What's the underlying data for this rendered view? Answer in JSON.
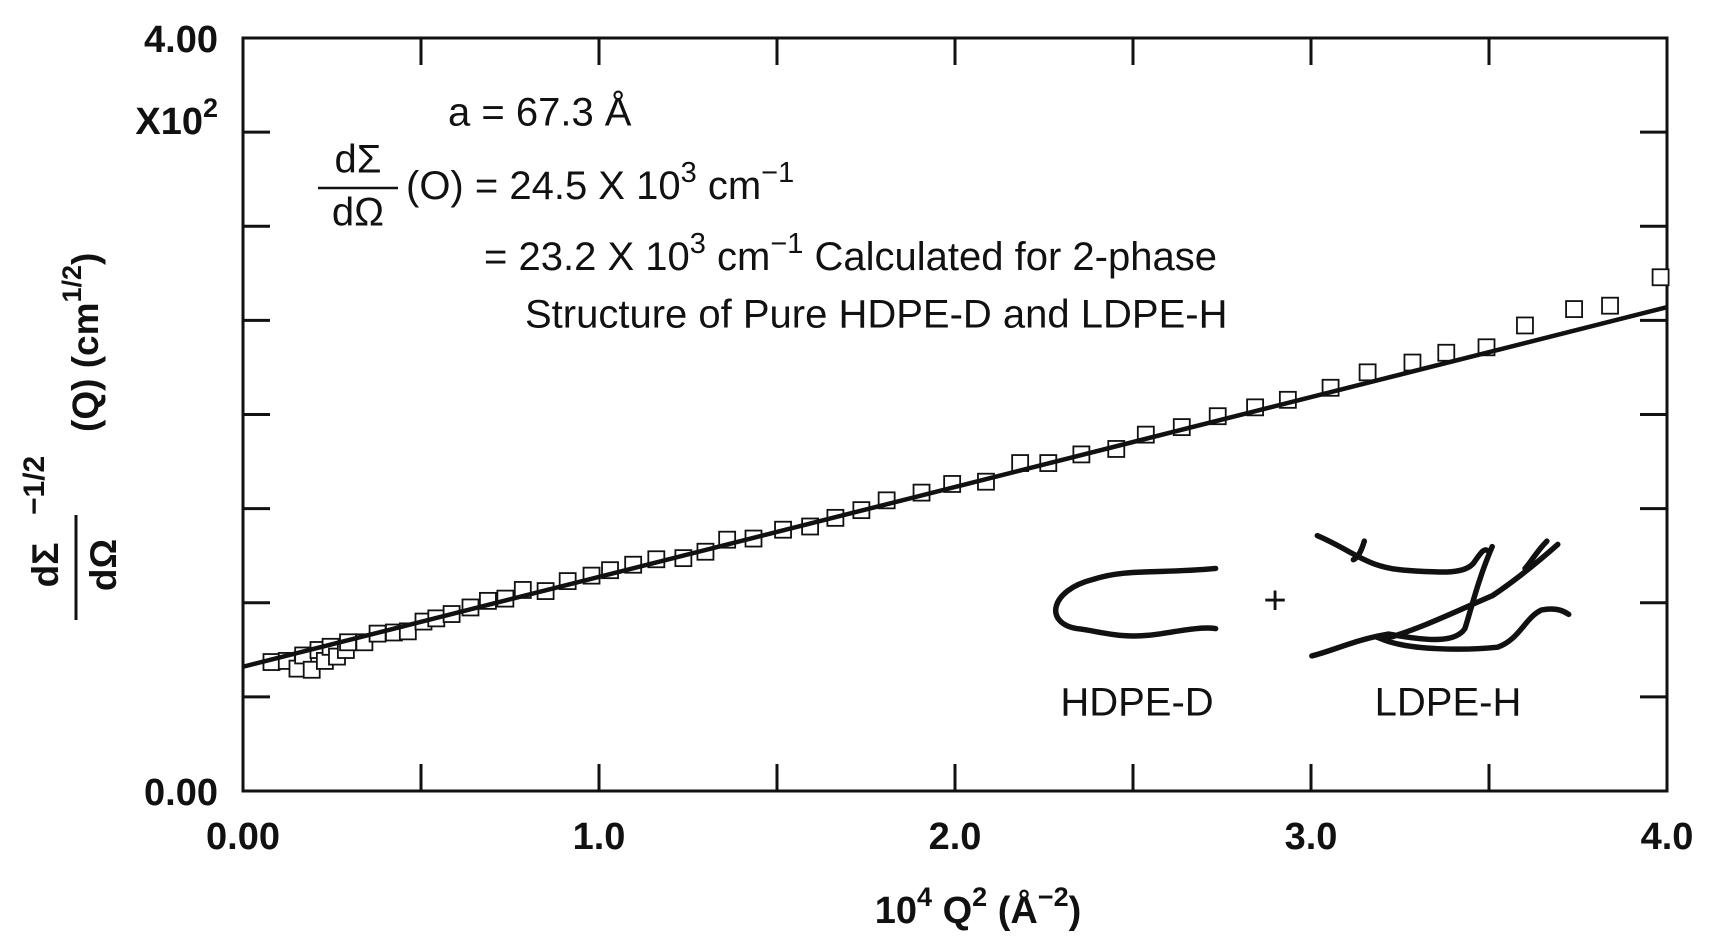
{
  "chart_data": {
    "type": "scatter",
    "xlim": [
      0,
      4
    ],
    "ylim": [
      0,
      4
    ],
    "xticks": [
      {
        "value": 0,
        "label": "0.00"
      },
      {
        "value": 1,
        "label": "1.0"
      },
      {
        "value": 2,
        "label": "2.0"
      },
      {
        "value": 3,
        "label": "3.0"
      },
      {
        "value": 4,
        "label": "4.0"
      }
    ],
    "xminor": [
      0.5,
      1.5,
      2.5,
      3.5
    ],
    "yticks": [
      {
        "value": 0,
        "label": "0.00"
      },
      {
        "value": 4,
        "label": "4.00"
      }
    ],
    "yminor": [
      0.5,
      1,
      1.5,
      2,
      2.5,
      3,
      3.5
    ],
    "y_multiplier": [
      "X10",
      "2"
    ],
    "x_label": [
      "10",
      "4",
      " Q",
      "2",
      " (Å",
      "−2",
      ")"
    ],
    "y_label": {
      "numerator": "dΣ",
      "denominator": "dΩ",
      "exp": "−1/2",
      "rest": [
        "(Q) (cm",
        "1/2",
        ")"
      ]
    },
    "annotations": {
      "a": "a = 67.3 Å",
      "fraction_num": "dΣ",
      "fraction_den": "dΩ",
      "line2": [
        "(O) = 24.5 X 10",
        "3",
        " cm",
        "−1"
      ],
      "line3": [
        "= 23.2 X 10",
        "3",
        " cm",
        "−1",
        " Calculated for 2-phase"
      ],
      "line4": "Structure of Pure HDPE-D and LDPE-H",
      "plus": "+",
      "hdpe": "HDPE-D",
      "ldpe": "LDPE-H"
    },
    "series": [
      {
        "type": "scatter",
        "marker": "square",
        "color": "#111111",
        "x": [
          0.08,
          0.123,
          0.153,
          0.169,
          0.193,
          0.212,
          0.23,
          0.246,
          0.264,
          0.289,
          0.295,
          0.341,
          0.378,
          0.424,
          0.463,
          0.507,
          0.543,
          0.586,
          0.639,
          0.688,
          0.737,
          0.786,
          0.85,
          0.912,
          0.979,
          1.031,
          1.096,
          1.161,
          1.237,
          1.299,
          1.36,
          1.434,
          1.517,
          1.593,
          1.664,
          1.737,
          1.808,
          1.906,
          1.992,
          2.087,
          2.183,
          2.262,
          2.355,
          2.453,
          2.536,
          2.637,
          2.738,
          2.843,
          2.935,
          3.055,
          3.159,
          3.285,
          3.38,
          3.493,
          3.601,
          3.739,
          3.84,
          3.982
        ],
        "values": [
          0.685,
          0.691,
          0.65,
          0.72,
          0.644,
          0.749,
          0.691,
          0.766,
          0.714,
          0.749,
          0.79,
          0.79,
          0.836,
          0.842,
          0.848,
          0.9,
          0.917,
          0.94,
          0.975,
          1.01,
          1.022,
          1.068,
          1.062,
          1.115,
          1.144,
          1.173,
          1.202,
          1.231,
          1.237,
          1.271,
          1.335,
          1.341,
          1.388,
          1.405,
          1.451,
          1.492,
          1.544,
          1.585,
          1.631,
          1.643,
          1.742,
          1.742,
          1.788,
          1.817,
          1.893,
          1.933,
          1.991,
          2.038,
          2.078,
          2.142,
          2.224,
          2.276,
          2.328,
          2.357,
          2.473,
          2.56,
          2.578,
          2.729
        ]
      },
      {
        "type": "line",
        "color": "#111111",
        "x": [
          0,
          4
        ],
        "values": [
          0.66,
          2.57
        ]
      }
    ]
  }
}
